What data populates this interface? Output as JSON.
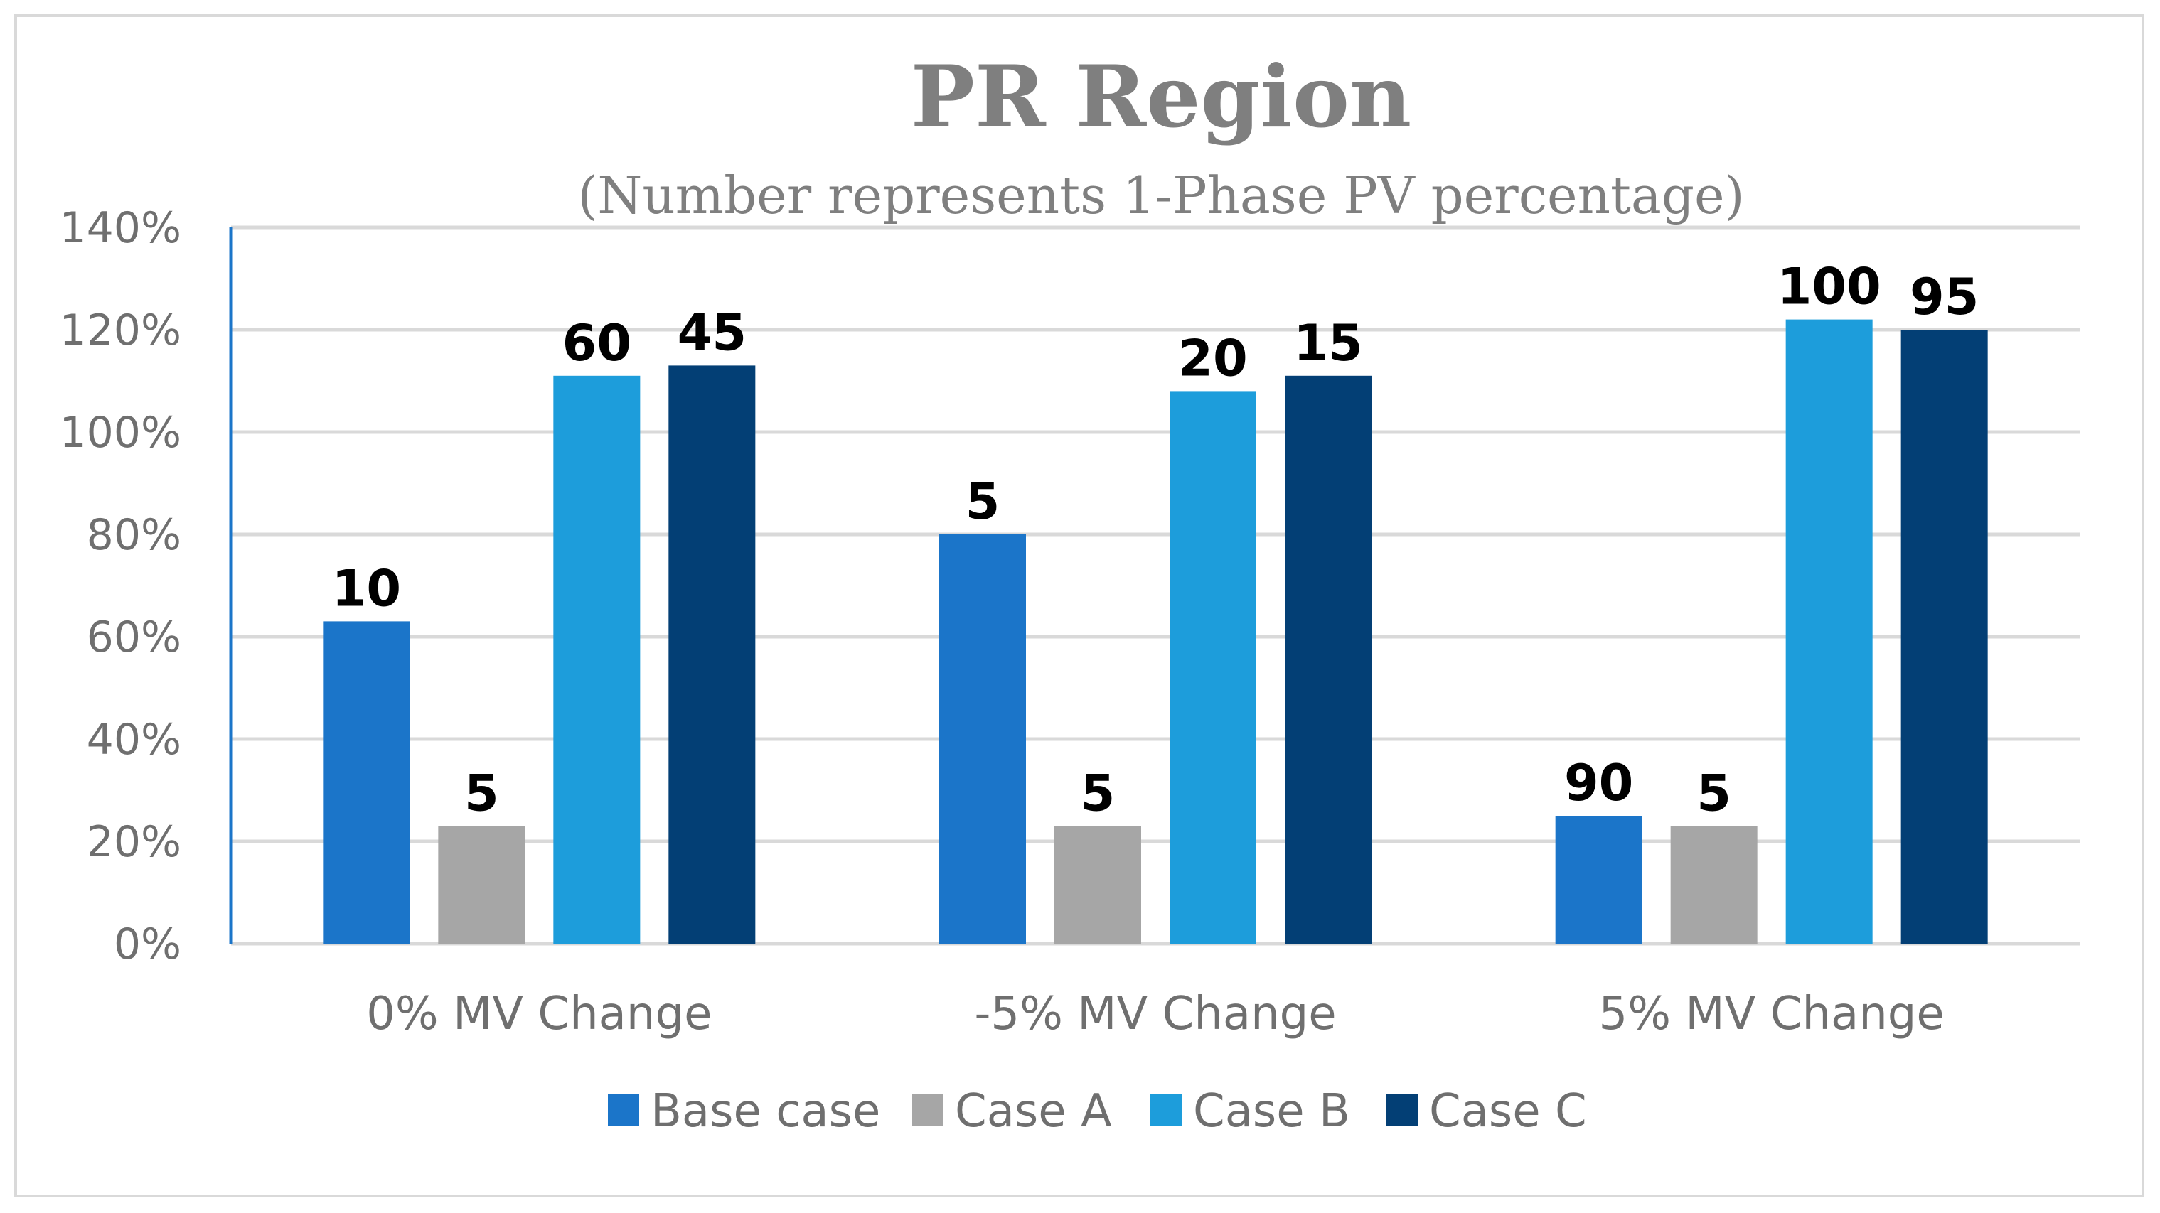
{
  "chart_data": {
    "type": "bar",
    "title": "PR Region",
    "subtitle": "(Number represents 1-Phase PV percentage)",
    "categories": [
      "0% MV Change",
      "-5% MV Change",
      "5% MV Change"
    ],
    "series": [
      {
        "name": "Base case",
        "color": "#1b75c9",
        "values": [
          0.63,
          0.8,
          0.25
        ],
        "labels": [
          "10",
          "5",
          "90"
        ]
      },
      {
        "name": "Case A",
        "color": "#a6a6a6",
        "values": [
          0.23,
          0.23,
          0.23
        ],
        "labels": [
          "5",
          "5",
          "5"
        ]
      },
      {
        "name": "Case B",
        "color": "#1d9ddb",
        "values": [
          1.11,
          1.08,
          1.22
        ],
        "labels": [
          "60",
          "20",
          "100"
        ]
      },
      {
        "name": "Case C",
        "color": "#033f75",
        "values": [
          1.13,
          1.11,
          1.2
        ],
        "labels": [
          "45",
          "15",
          "95"
        ]
      }
    ],
    "yticks": [
      "0%",
      "20%",
      "40%",
      "60%",
      "80%",
      "100%",
      "120%",
      "140%"
    ],
    "ylim": [
      0,
      1.4
    ],
    "xlabel": "",
    "ylabel": "",
    "grid": true,
    "legend": "bottom"
  }
}
